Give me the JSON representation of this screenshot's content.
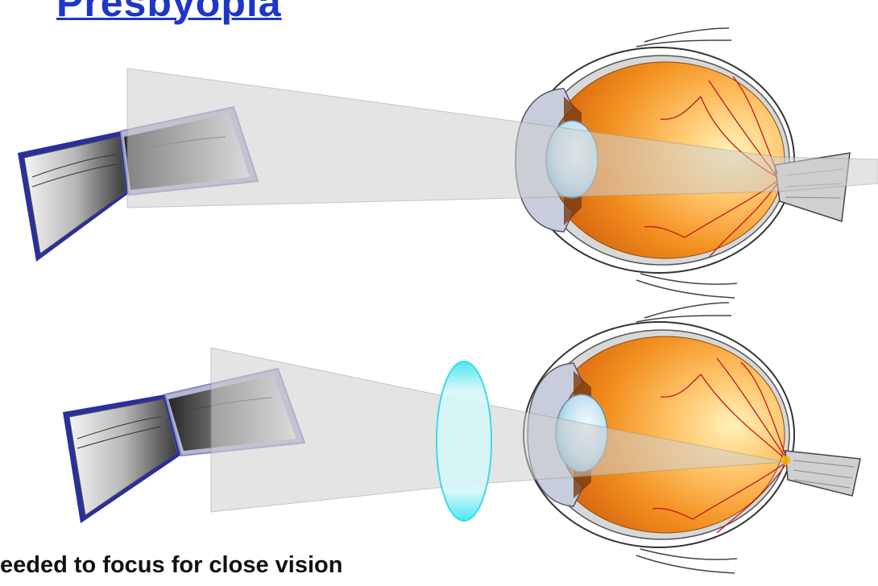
{
  "title": "Presbyopia",
  "caption": "eeded to focus for close vision",
  "panels": [
    {
      "name": "uncorrected-eye",
      "corrective_lens": false
    },
    {
      "name": "corrected-eye",
      "corrective_lens": true
    }
  ],
  "colors": {
    "title": "#1d36c8",
    "eye_orange": "#f08a1e",
    "eye_highlight": "#ffe89a",
    "vessel": "#c8141e",
    "book_border": "#2a2f9a",
    "lens_cyan": "#4fe6f2",
    "light_cone": "#d7d7d7"
  }
}
